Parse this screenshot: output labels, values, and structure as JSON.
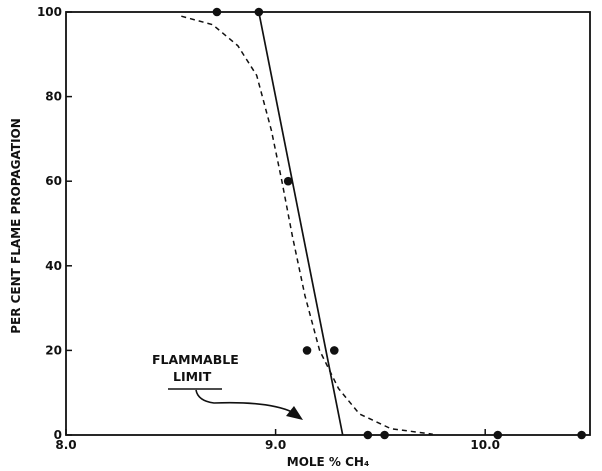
{
  "chart_data": {
    "type": "scatter",
    "xlabel": "MOLE % CH₄",
    "ylabel": "PER CENT FLAME PROPAGATION",
    "xlim": [
      8.0,
      10.5
    ],
    "ylim": [
      0,
      100
    ],
    "x_ticks": [
      "8.0",
      "9.0",
      "10.0"
    ],
    "y_ticks": [
      "0",
      "20",
      "40",
      "60",
      "80",
      "100"
    ],
    "grid": false,
    "series": [
      {
        "type": "scatter",
        "marker": "filled-circle",
        "points": [
          {
            "x": 8.72,
            "y": 100
          },
          {
            "x": 8.92,
            "y": 100
          },
          {
            "x": 9.06,
            "y": 60
          },
          {
            "x": 9.15,
            "y": 20
          },
          {
            "x": 9.28,
            "y": 20
          },
          {
            "x": 9.44,
            "y": 0
          },
          {
            "x": 9.52,
            "y": 0
          },
          {
            "x": 10.06,
            "y": 0
          },
          {
            "x": 10.46,
            "y": 0
          }
        ]
      },
      {
        "type": "line",
        "style": "solid",
        "points": [
          {
            "x": 8.92,
            "y": 100
          },
          {
            "x": 9.32,
            "y": 0
          }
        ]
      },
      {
        "type": "line",
        "style": "dashed",
        "points": [
          {
            "x": 8.55,
            "y": 99
          },
          {
            "x": 8.7,
            "y": 97
          },
          {
            "x": 8.82,
            "y": 92
          },
          {
            "x": 8.91,
            "y": 85
          },
          {
            "x": 8.98,
            "y": 72
          },
          {
            "x": 9.03,
            "y": 60
          },
          {
            "x": 9.08,
            "y": 47
          },
          {
            "x": 9.14,
            "y": 33
          },
          {
            "x": 9.21,
            "y": 20
          },
          {
            "x": 9.3,
            "y": 11
          },
          {
            "x": 9.4,
            "y": 5
          },
          {
            "x": 9.55,
            "y": 1.5
          },
          {
            "x": 9.75,
            "y": 0.2
          }
        ]
      }
    ],
    "annotations": {
      "line1": "FLAMMABLE",
      "line2": "LIMIT"
    }
  }
}
